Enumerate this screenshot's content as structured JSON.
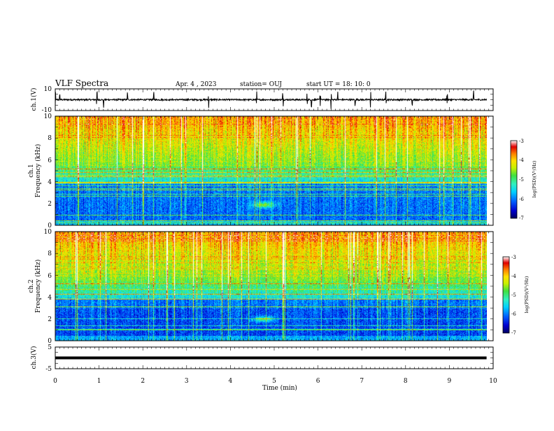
{
  "header": {
    "title": "VLF Spectra",
    "date": "Apr. 4 , 2023",
    "station": "station= OUJ",
    "start": "start  UT =   18: 10: 0"
  },
  "chart_data": [
    {
      "type": "line",
      "name": "ch1-waveform",
      "ylabel": "ch.1(V)",
      "ylim": [
        -10,
        10
      ],
      "yticks": [
        "10",
        "-10"
      ],
      "xlim": [
        0,
        10
      ],
      "baseline": 0,
      "spikes_min": [
        0.0,
        0.1,
        0.95,
        1.1,
        1.65,
        2.25,
        3.5,
        4.6,
        5.2,
        5.75,
        5.85,
        6.05,
        6.3,
        6.45,
        6.85,
        7.2,
        7.55,
        8.15,
        8.95,
        9.55
      ]
    },
    {
      "type": "heatmap",
      "name": "ch1-spectrogram",
      "ylabel": "ch.1",
      "ylabel2": "Frequency  (kHz)",
      "xlim": [
        0,
        10
      ],
      "ylim": [
        0,
        10
      ],
      "yticks": [
        "0",
        "2",
        "4",
        "6",
        "8",
        "10"
      ],
      "colorbar": {
        "label": "log(PSD)(V²/Hz)",
        "range": [
          -7,
          -3
        ],
        "ticks": [
          "-3",
          "-4",
          "-5",
          "-6",
          "-7"
        ]
      },
      "features": {
        "end_time_min": 9.85,
        "blob": {
          "t_min": 4.75,
          "f_khz": 1.9
        }
      }
    },
    {
      "type": "heatmap",
      "name": "ch2-spectrogram",
      "ylabel": "ch.2",
      "ylabel2": "Frequency  (kHz)",
      "xlim": [
        0,
        10
      ],
      "ylim": [
        0,
        10
      ],
      "yticks": [
        "0",
        "2",
        "4",
        "6",
        "8",
        "10"
      ],
      "colorbar": {
        "label": "log(PSD)(V²/Hz)",
        "range": [
          -7,
          -3
        ],
        "ticks": [
          "-3",
          "-4",
          "-5",
          "-6",
          "-7"
        ]
      },
      "features": {
        "end_time_min": 9.85,
        "blob": {
          "t_min": 4.75,
          "f_khz": 2.0
        }
      }
    },
    {
      "type": "line",
      "name": "ch3-waveform",
      "ylabel": "ch.3(V)",
      "ylim": [
        -5,
        5
      ],
      "yticks": [
        "5",
        "-5"
      ],
      "xlim": [
        0,
        10
      ],
      "baseline": 0,
      "xlabel": "Time  (min)",
      "xticks": [
        "0",
        "1",
        "2",
        "3",
        "4",
        "5",
        "6",
        "7",
        "8",
        "9",
        "10"
      ]
    }
  ],
  "colors": {
    "scale": [
      "#000060",
      "#0000d0",
      "#0060ff",
      "#00d0ff",
      "#30f0c0",
      "#40e040",
      "#c8f000",
      "#ffe000",
      "#ff8000",
      "#e00000",
      "#ffffff"
    ]
  }
}
